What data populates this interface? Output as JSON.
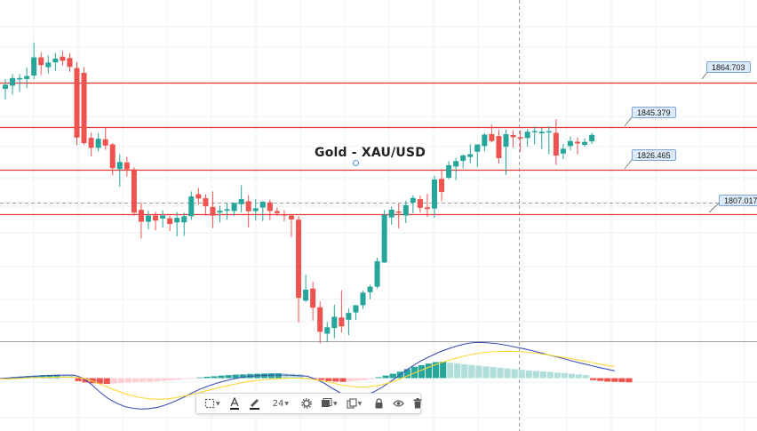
{
  "chart_data": [
    {
      "type": "candlestick",
      "title": "Gold - XAU/USD",
      "horizontal_levels": [
        {
          "value": 1864.703,
          "label": "1864.703",
          "color": "#e53935"
        },
        {
          "value": 1845.379,
          "label": "1845.379",
          "color": "#e53935"
        },
        {
          "value": 1826.465,
          "label": "1826.465",
          "color": "#e53935"
        },
        {
          "value": 1807.017,
          "label": "1807.017",
          "color": "#e53935"
        }
      ],
      "y_range": [
        1760,
        1890
      ],
      "grid": true,
      "colors": {
        "up": "#26a69a",
        "down": "#ef5350",
        "level": "#e53935",
        "crosshair": "#9e9e9e"
      },
      "candles": [
        [
          1862.0,
          1866.3,
          1857.3,
          1863.8
        ],
        [
          1863.4,
          1868.5,
          1859.4,
          1866.7
        ],
        [
          1866.7,
          1868.5,
          1860.7,
          1866.7
        ],
        [
          1866.3,
          1871.4,
          1862.4,
          1867.6
        ],
        [
          1867.8,
          1882.3,
          1866.2,
          1875.8
        ],
        [
          1875.8,
          1878.1,
          1868.1,
          1872.4
        ],
        [
          1871.5,
          1876.6,
          1868.7,
          1873.5
        ],
        [
          1873.6,
          1877.8,
          1869.9,
          1875.3
        ],
        [
          1876.1,
          1878.5,
          1872.2,
          1874.3
        ],
        [
          1875.5,
          1877.7,
          1869.4,
          1871.6
        ],
        [
          1871.1,
          1873.8,
          1837.3,
          1840.6
        ],
        [
          1869.0,
          1871.5,
          1837.4,
          1838.2
        ],
        [
          1840.5,
          1842.8,
          1832.4,
          1836.1
        ],
        [
          1836.1,
          1842.5,
          1834.6,
          1840.1
        ],
        [
          1839.9,
          1844.8,
          1835.2,
          1837.1
        ],
        [
          1837.6,
          1838.2,
          1824.0,
          1827.2
        ],
        [
          1826.8,
          1833.4,
          1819.0,
          1829.9
        ],
        [
          1829.7,
          1832.2,
          1823.5,
          1826.7
        ],
        [
          1826.7,
          1827.6,
          1806.2,
          1807.7
        ],
        [
          1808.9,
          1812.2,
          1796.3,
          1803.7
        ],
        [
          1803.7,
          1808.5,
          1800.4,
          1806.4
        ],
        [
          1806.4,
          1808.1,
          1799.9,
          1804.2
        ],
        [
          1805.1,
          1808.7,
          1801.1,
          1806.4
        ],
        [
          1805.2,
          1806.4,
          1799.5,
          1802.7
        ],
        [
          1803.4,
          1807.9,
          1797.3,
          1805.4
        ],
        [
          1803.4,
          1807.7,
          1797.5,
          1806.1
        ],
        [
          1806.1,
          1817.0,
          1804.5,
          1814.8
        ],
        [
          1815.8,
          1818.5,
          1811.1,
          1813.9
        ],
        [
          1814.0,
          1815.7,
          1806.4,
          1810.5
        ],
        [
          1810.2,
          1817.0,
          1800.9,
          1806.4
        ],
        [
          1807.7,
          1810.6,
          1803.3,
          1808.5
        ],
        [
          1808.5,
          1812.1,
          1804.6,
          1809.2
        ],
        [
          1808.4,
          1812.0,
          1806.2,
          1812.0
        ],
        [
          1811.4,
          1819.7,
          1807.8,
          1813.6
        ],
        [
          1812.7,
          1815.4,
          1801.1,
          1808.3
        ],
        [
          1808.4,
          1813.6,
          1804.2,
          1809.6
        ],
        [
          1809.9,
          1812.7,
          1804.0,
          1812.5
        ],
        [
          1812.2,
          1813.4,
          1804.4,
          1808.4
        ],
        [
          1808.4,
          1810.0,
          1806.2,
          1807.5
        ],
        [
          1807.0,
          1808.7,
          1803.9,
          1806.4
        ],
        [
          1806.4,
          1806.8,
          1796.9,
          1804.7
        ],
        [
          1804.6,
          1806.2,
          1759.6,
          1770.3
        ],
        [
          1769.1,
          1780.5,
          1768.5,
          1773.9
        ],
        [
          1774.4,
          1777.4,
          1760.3,
          1766.0
        ],
        [
          1766.2,
          1768.8,
          1750.3,
          1755.4
        ],
        [
          1754.6,
          1759.8,
          1750.8,
          1757.4
        ],
        [
          1757.1,
          1767.3,
          1752.6,
          1762.0
        ],
        [
          1761.7,
          1773.7,
          1755.1,
          1757.8
        ],
        [
          1760.7,
          1765.7,
          1753.9,
          1763.7
        ],
        [
          1763.9,
          1765.8,
          1760.6,
          1767.1
        ],
        [
          1767.1,
          1773.4,
          1765.5,
          1772.6
        ],
        [
          1772.8,
          1776.1,
          1769.7,
          1775.2
        ],
        [
          1775.2,
          1787.9,
          1774.4,
          1786.4
        ],
        [
          1785.8,
          1808.8,
          1785.6,
          1806.8
        ],
        [
          1805.6,
          1810.4,
          1802.4,
          1809.0
        ],
        [
          1808.2,
          1811.6,
          1800.8,
          1808.1
        ],
        [
          1806.4,
          1812.9,
          1803.1,
          1811.0
        ],
        [
          1812.1,
          1815.3,
          1807.4,
          1814.1
        ],
        [
          1813.6,
          1815.1,
          1807.7,
          1809.8
        ],
        [
          1810.0,
          1815.9,
          1805.8,
          1809.3
        ],
        [
          1809.5,
          1823.9,
          1805.4,
          1822.2
        ],
        [
          1822.5,
          1826.8,
          1812.7,
          1816.8
        ],
        [
          1823.0,
          1830.2,
          1822.3,
          1828.5
        ],
        [
          1827.9,
          1831.8,
          1821.9,
          1830.3
        ],
        [
          1830.4,
          1833.2,
          1827.1,
          1832.8
        ],
        [
          1832.1,
          1837.6,
          1829.4,
          1833.3
        ],
        [
          1834.4,
          1837.4,
          1827.6,
          1837.6
        ],
        [
          1836.9,
          1842.6,
          1834.7,
          1841.9
        ],
        [
          1842.1,
          1846.3,
          1838.5,
          1839.1
        ],
        [
          1841.3,
          1844.2,
          1829.1,
          1831.6
        ],
        [
          1836.6,
          1844.0,
          1824.2,
          1842.1
        ],
        [
          1841.7,
          1843.8,
          1836.3,
          1840.8
        ],
        [
          1840.8,
          1843.8,
          1834.4,
          1840.2
        ],
        [
          1840.4,
          1844.4,
          1836.6,
          1843.2
        ],
        [
          1843.2,
          1845.5,
          1837.6,
          1843.5
        ],
        [
          1842.5,
          1844.9,
          1835.5,
          1843.2
        ],
        [
          1843.3,
          1845.6,
          1833.4,
          1843.4
        ],
        [
          1842.7,
          1848.7,
          1828.6,
          1832.7
        ],
        [
          1833.6,
          1837.8,
          1831.2,
          1835.7
        ],
        [
          1836.9,
          1841.1,
          1835.0,
          1839.1
        ],
        [
          1838.8,
          1840.7,
          1833.3,
          1838.0
        ],
        [
          1837.4,
          1840.2,
          1836.6,
          1838.7
        ],
        [
          1839.0,
          1842.6,
          1837.8,
          1841.8
        ]
      ]
    },
    {
      "type": "histogram",
      "title": "",
      "series": [
        {
          "name": "",
          "values": [
            0.2,
            0.5,
            0.7,
            0.9,
            1.1,
            1.3,
            1.4,
            1.5,
            1.4,
            1.2,
            -1.3,
            -1.9,
            -2.2,
            -2.4,
            -2.5,
            -2.3,
            -2.1,
            -1.9,
            -1.7,
            -1.6,
            -1.5,
            -1.3,
            -1.2,
            -1.0,
            -0.7,
            -0.4,
            -0.2,
            0.3,
            0.6,
            0.8,
            1.1,
            1.3,
            1.5,
            1.6,
            1.8,
            1.9,
            2.0,
            2.1,
            2.1,
            2.0,
            1.9,
            1.8,
            0.2,
            -0.3,
            -0.8,
            -1.3,
            -1.5,
            -1.6,
            -1.4,
            -1.1,
            -0.9,
            -0.5,
            0.4,
            1.1,
            1.9,
            2.8,
            3.9,
            4.9,
            5.6,
            6.3,
            6.9,
            7.1,
            6.7,
            6.4,
            6.0,
            5.7,
            5.4,
            5.1,
            4.8,
            4.5,
            4.2,
            3.9,
            3.6,
            3.3,
            3.1,
            2.9,
            2.7,
            2.4,
            2.2,
            1.9,
            1.6,
            1.3,
            -0.9,
            -1.2,
            -1.5,
            -1.6,
            -1.7,
            -1.8
          ]
        }
      ],
      "lines": [
        {
          "name": "",
          "color": "#3f51b5",
          "values": [
            -0.2,
            0.1,
            0.3,
            0.6,
            0.8,
            1.0,
            1.2,
            1.3,
            1.4,
            1.3,
            0.0,
            -2.8,
            -6.2,
            -9.1,
            -11.2,
            -12.8,
            -13.6,
            -13.9,
            -13.7,
            -13.1,
            -12.0,
            -10.5,
            -8.8,
            -6.9,
            -5.1,
            -3.6,
            -2.4,
            -1.3,
            -0.4,
            0.3,
            0.8,
            1.1,
            1.3,
            1.4,
            1.4,
            1.3,
            1.1,
            0.9,
            -0.5,
            -2.2,
            -4.6,
            -6.7,
            -7.9,
            -8.2,
            -7.7,
            -6.2,
            -4.1,
            -1.6,
            1.1,
            3.8,
            6.3,
            8.4,
            10.2,
            11.9,
            13.3,
            14.5,
            15.4,
            16.0,
            16.1,
            15.8,
            15.4,
            14.8,
            14.0,
            13.3,
            12.4,
            11.5,
            10.5,
            9.6,
            8.6,
            7.6,
            6.7,
            5.8,
            4.9,
            4.1,
            3.3
          ]
        },
        {
          "name": "",
          "color": "#fdd835",
          "values": [
            -0.4,
            -0.3,
            -0.2,
            0.0,
            0.2,
            0.3,
            0.4,
            0.5,
            0.5,
            0.4,
            0.0,
            -1.2,
            -2.6,
            -4.1,
            -5.6,
            -6.9,
            -8.0,
            -8.8,
            -9.3,
            -9.5,
            -9.3,
            -8.9,
            -8.2,
            -7.4,
            -6.5,
            -5.5,
            -4.6,
            -3.7,
            -2.9,
            -2.1,
            -1.5,
            -1.0,
            -0.6,
            -0.3,
            -0.1,
            0.0,
            0.0,
            -0.2,
            -0.7,
            -1.4,
            -2.2,
            -3.0,
            -3.6,
            -4.0,
            -4.0,
            -3.6,
            -2.9,
            -1.9,
            -0.6,
            0.9,
            2.5,
            4.0,
            5.5,
            6.8,
            8.0,
            9.1,
            10.0,
            10.8,
            11.4,
            11.8,
            12.0,
            12.1,
            12.0,
            11.8,
            11.4,
            11.0,
            10.5,
            9.9,
            9.3,
            8.6,
            7.9,
            7.2,
            6.5,
            5.8,
            5.2
          ]
        }
      ],
      "colors": {
        "pos_strong": "#26a69a",
        "pos_weak": "#b2dfdb",
        "neg_strong": "#ef5350",
        "neg_weak": "#ffcdd2"
      }
    }
  ],
  "toolbar": {
    "font_size_label": "24",
    "items": [
      "select-icon",
      "text-color-icon",
      "brush-icon",
      "font-size",
      "settings-icon",
      "style-icon",
      "clone-icon",
      "lock-icon",
      "visibility-icon",
      "delete-icon"
    ]
  }
}
